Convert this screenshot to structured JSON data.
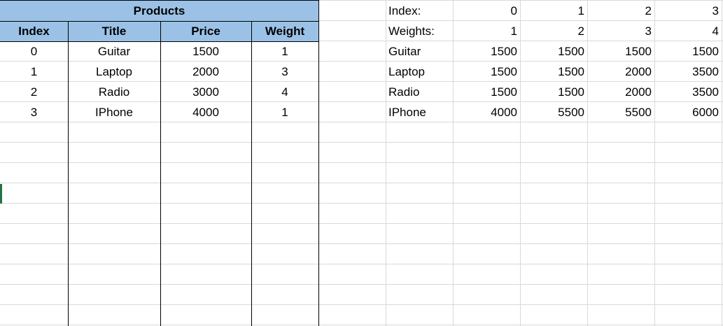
{
  "products": {
    "title": "Products",
    "columns": [
      "Index",
      "Title",
      "Price",
      "Weight"
    ],
    "rows": [
      [
        "0",
        "Guitar",
        "1500",
        "1"
      ],
      [
        "1",
        "Laptop",
        "2000",
        "3"
      ],
      [
        "2",
        "Radio",
        "3000",
        "4"
      ],
      [
        "3",
        "IPhone",
        "4000",
        "1"
      ]
    ]
  },
  "knapsack": {
    "index_label": "Index:",
    "indices": [
      "0",
      "1",
      "2",
      "3"
    ],
    "weights_label": "Weights:",
    "weights": [
      "1",
      "2",
      "3",
      "4"
    ],
    "rows": [
      {
        "label": "Guitar",
        "values": [
          "1500",
          "1500",
          "1500",
          "1500"
        ]
      },
      {
        "label": "Laptop",
        "values": [
          "1500",
          "1500",
          "2000",
          "3500"
        ]
      },
      {
        "label": "Radio",
        "values": [
          "1500",
          "1500",
          "2000",
          "3500"
        ]
      },
      {
        "label": "IPhone",
        "values": [
          "4000",
          "5500",
          "5500",
          "6000"
        ]
      }
    ]
  },
  "colors": {
    "header_fill": "#9bc2e6",
    "gridline": "#d9d9d9",
    "border": "#000000",
    "selection": "#217346"
  }
}
